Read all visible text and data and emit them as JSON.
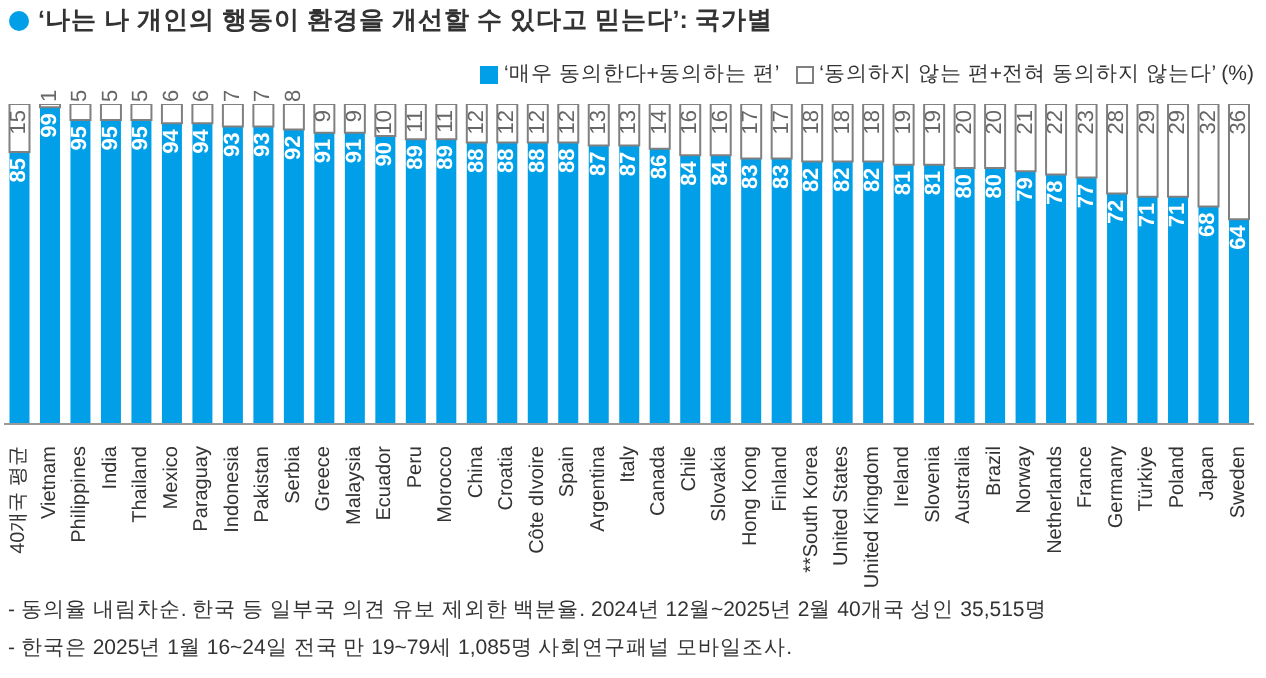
{
  "chart_data": {
    "type": "bar",
    "stacked": true,
    "title": "‘나는 나 개인의 행동이 환경을 개선할 수 있다고 믿는다’: 국가별",
    "categories": [
      "40개국 평균",
      "Vietnam",
      "Philippines",
      "India",
      "Thailand",
      "Mexico",
      "Paraguay",
      "Indonesia",
      "Pakistan",
      "Serbia",
      "Greece",
      "Malaysia",
      "Ecuador",
      "Peru",
      "Morocco",
      "China",
      "Croatia",
      "Côte dIvoire",
      "Spain",
      "Argentina",
      "Italy",
      "Canada",
      "Chile",
      "Slovakia",
      "Hong Kong",
      "Finland",
      "**South Korea",
      "United States",
      "United Kingdom",
      "Ireland",
      "Slovenia",
      "Australia",
      "Brazil",
      "Norway",
      "Netherlands",
      "France",
      "Germany",
      "Türkiye",
      "Poland",
      "Japan",
      "Sweden"
    ],
    "series": [
      {
        "name": "‘매우 동의한다+동의하는 편’",
        "color": "#009fe8",
        "values": [
          85,
          99,
          95,
          95,
          95,
          94,
          94,
          93,
          93,
          92,
          91,
          91,
          90,
          89,
          89,
          88,
          88,
          88,
          88,
          87,
          87,
          86,
          84,
          84,
          83,
          83,
          82,
          82,
          82,
          81,
          81,
          80,
          80,
          79,
          78,
          77,
          72,
          71,
          71,
          68,
          64
        ]
      },
      {
        "name": "‘동의하지 않는 편+전혀 동의하지 않는다’ (%)",
        "color": "#ffffff",
        "values": [
          15,
          1,
          5,
          5,
          5,
          6,
          6,
          7,
          7,
          8,
          9,
          9,
          10,
          11,
          11,
          12,
          12,
          12,
          12,
          13,
          13,
          14,
          16,
          16,
          17,
          17,
          18,
          18,
          18,
          19,
          19,
          20,
          20,
          21,
          22,
          23,
          28,
          29,
          29,
          32,
          36
        ]
      }
    ],
    "ylim": [
      0,
      100
    ],
    "tick_labels": "x",
    "data_labels": true,
    "legend": "top right",
    "annotations": [
      "- 동의율 내림차순. 한국 등 일부국 의견 유보 제외한 백분율. 2024년 12월~2025년 2월 40개국 성인 35,515명",
      "- 한국은 2025년 1월 16~24일 전국 만 19~79세 1,085명 사회연구패널 모바일조사."
    ]
  }
}
